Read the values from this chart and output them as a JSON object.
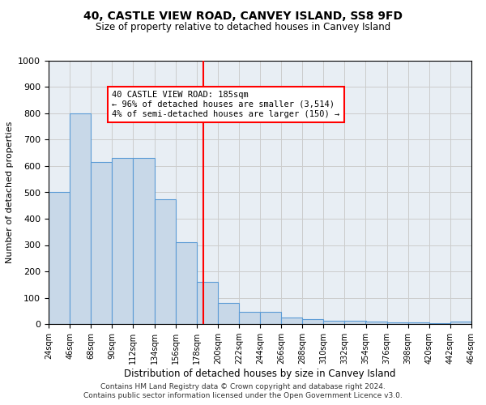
{
  "title": "40, CASTLE VIEW ROAD, CANVEY ISLAND, SS8 9FD",
  "subtitle": "Size of property relative to detached houses in Canvey Island",
  "xlabel": "Distribution of detached houses by size in Canvey Island",
  "ylabel": "Number of detached properties",
  "bar_color": "#c8d8e8",
  "bar_edge_color": "#5b9bd5",
  "grid_color": "#cccccc",
  "bg_color": "#e8eef4",
  "vline_x": 185,
  "vline_color": "red",
  "annotation_text": "40 CASTLE VIEW ROAD: 185sqm\n← 96% of detached houses are smaller (3,514)\n4% of semi-detached houses are larger (150) →",
  "annotation_box_color": "white",
  "annotation_box_edge_color": "red",
  "footer_line1": "Contains HM Land Registry data © Crown copyright and database right 2024.",
  "footer_line2": "Contains public sector information licensed under the Open Government Licence v3.0.",
  "bin_edges": [
    24,
    46,
    68,
    90,
    112,
    134,
    156,
    178,
    200,
    222,
    244,
    266,
    288,
    310,
    332,
    354,
    376,
    398,
    420,
    442,
    464
  ],
  "bar_heights": [
    500,
    800,
    615,
    630,
    630,
    475,
    310,
    160,
    80,
    45,
    45,
    25,
    20,
    12,
    12,
    8,
    7,
    5,
    2,
    10
  ],
  "ylim": [
    0,
    1000
  ],
  "yticks": [
    0,
    100,
    200,
    300,
    400,
    500,
    600,
    700,
    800,
    900,
    1000
  ]
}
